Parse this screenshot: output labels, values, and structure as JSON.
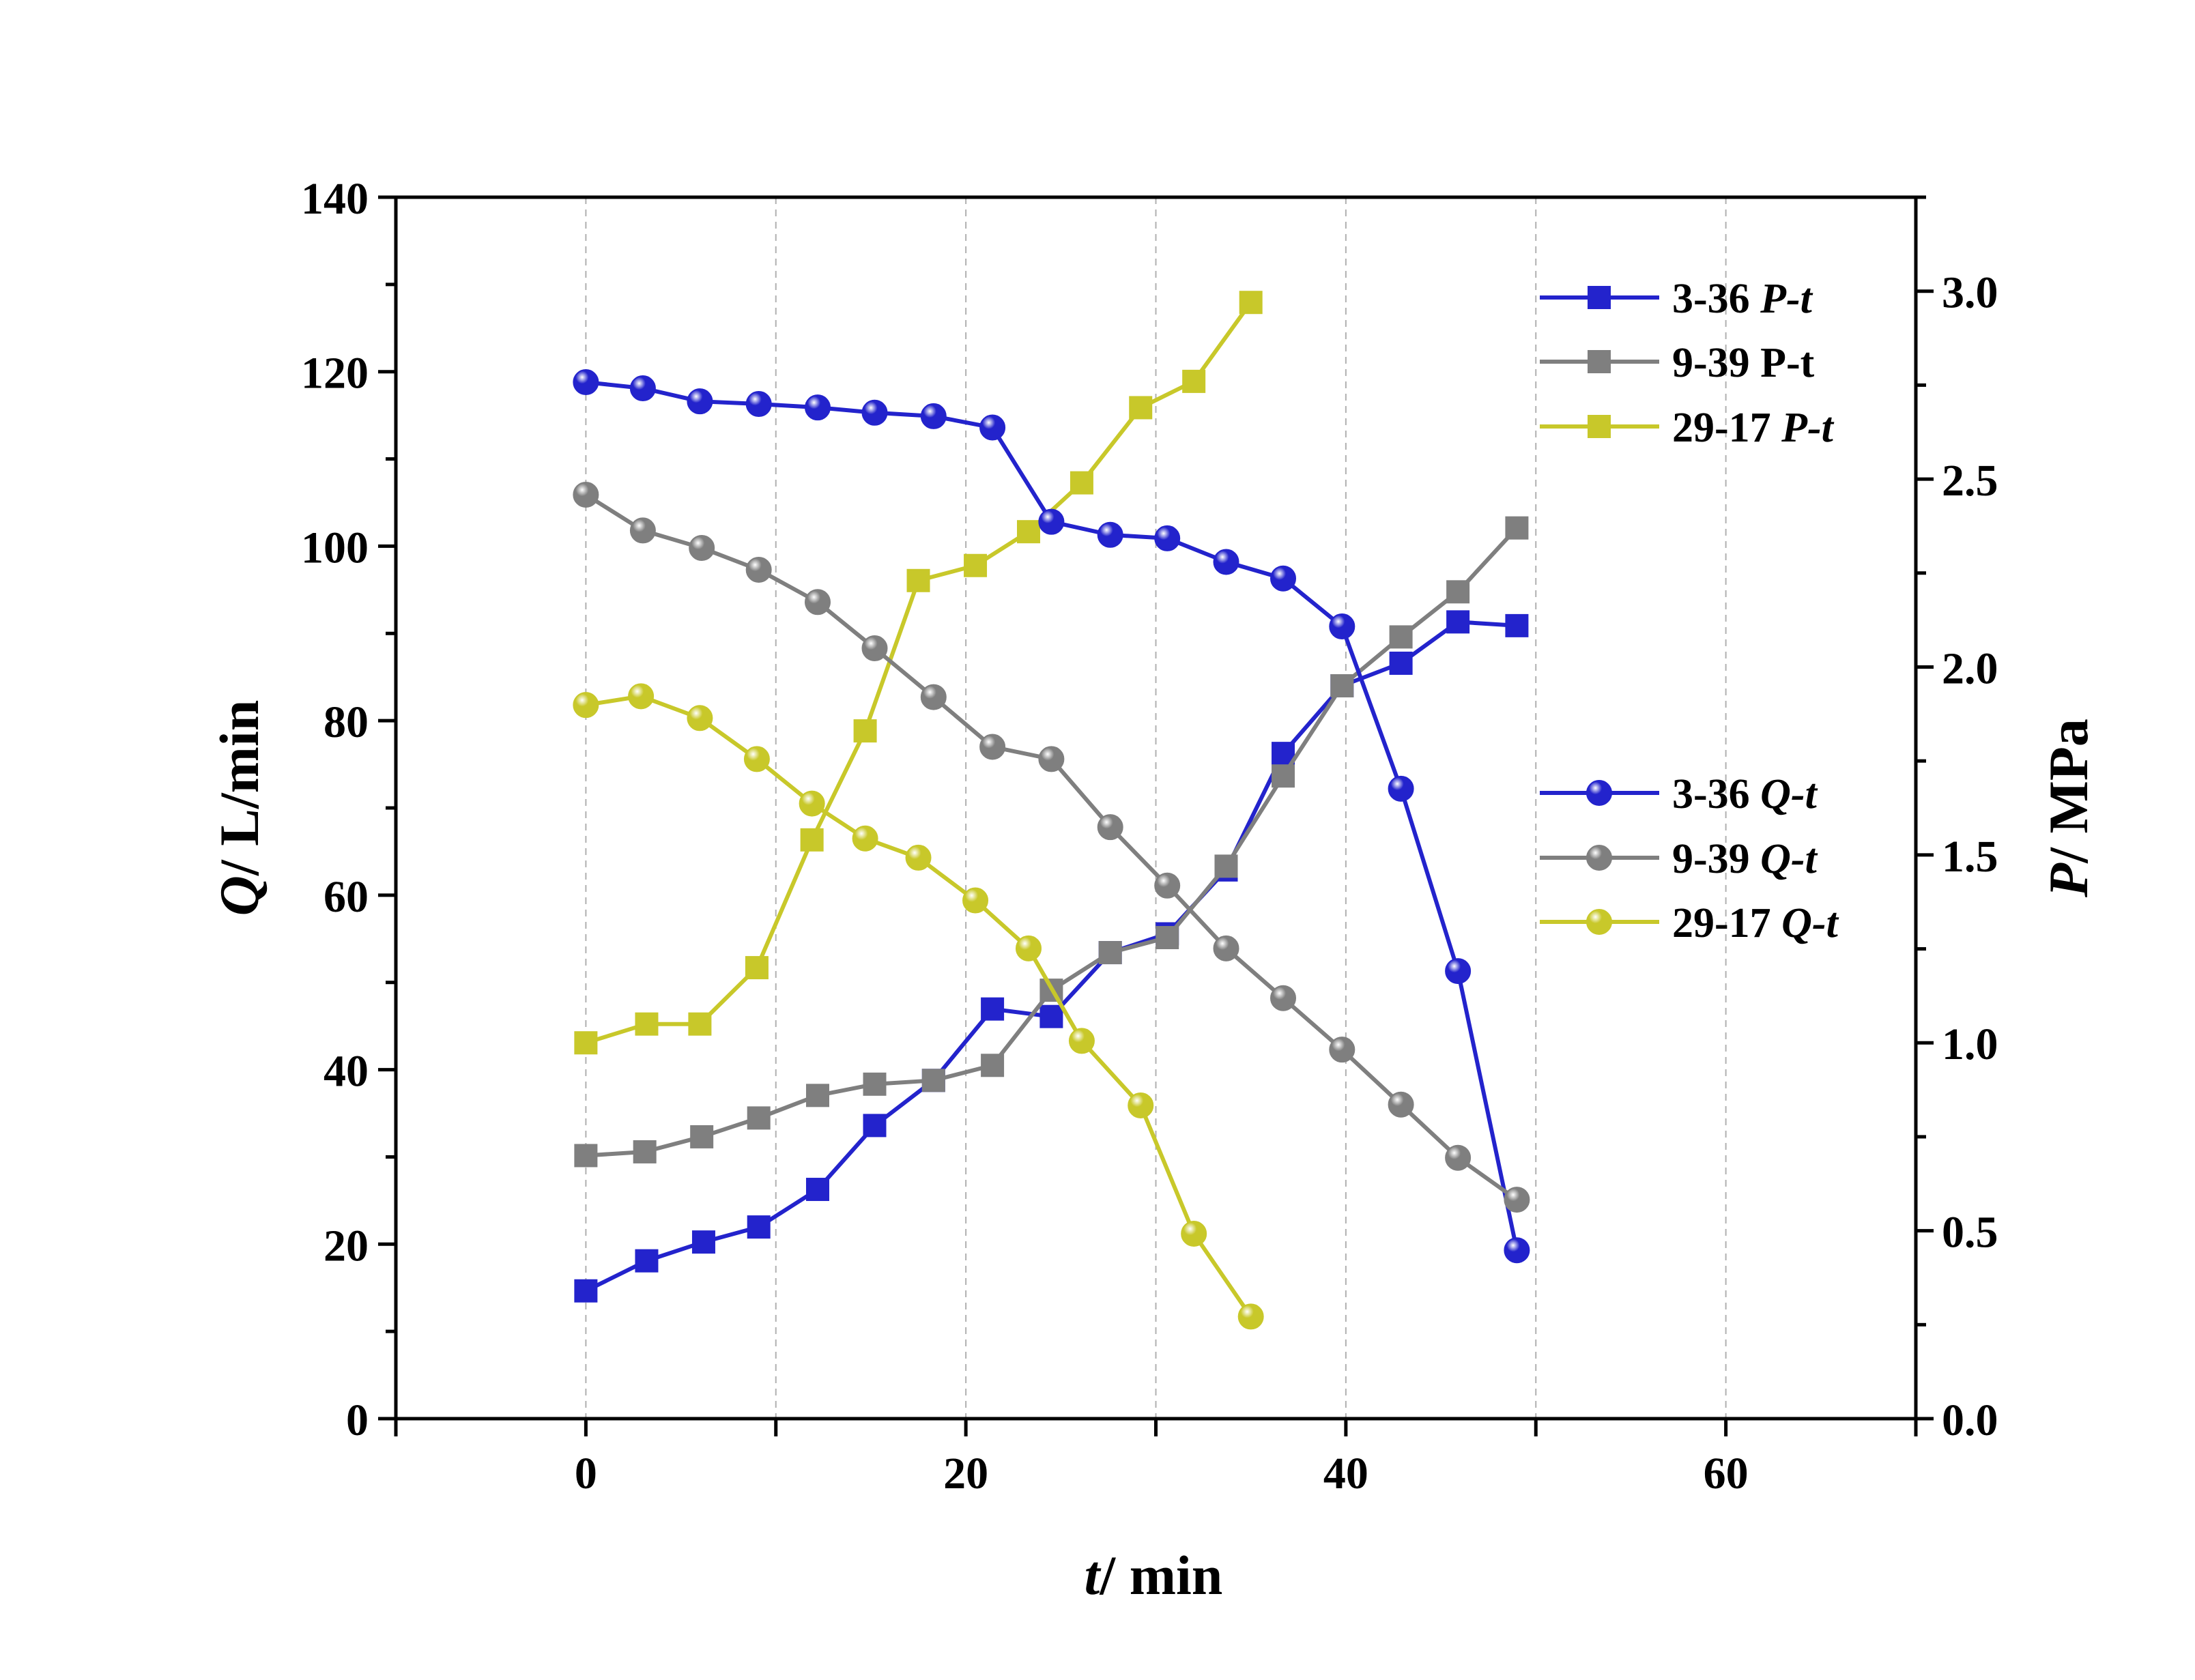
{
  "chart_data": {
    "type": "line",
    "grid": "vertical dashed",
    "x_axis": {
      "label_var": "t",
      "label_unit": "/ min",
      "range": [
        -10,
        70
      ],
      "ticks": [
        0,
        20,
        40,
        60
      ],
      "tick_labels": [
        "0",
        "20",
        "40",
        "60"
      ]
    },
    "y_left": {
      "label_var": "Q",
      "label_unit": "/ L/min",
      "range": [
        0,
        140
      ],
      "ticks": [
        0,
        20,
        40,
        60,
        80,
        100,
        120,
        140
      ],
      "tick_labels": [
        "0",
        "20",
        "40",
        "60",
        "80",
        "100",
        "120",
        "140"
      ]
    },
    "y_right": {
      "label_var": "P",
      "label_unit": "/ MPa",
      "range": [
        0,
        3.25
      ],
      "ticks": [
        0,
        0.5,
        1.0,
        1.5,
        2.0,
        2.5,
        3.0
      ],
      "tick_labels": [
        "0.0",
        "0.5",
        "1.0",
        "1.5",
        "2.0",
        "2.5",
        "3.0"
      ]
    },
    "legend_placement": "right",
    "series": [
      {
        "name": "3-36 P-t",
        "name_id": "3-36 ",
        "name_var": "P-t",
        "name_var_italic": true,
        "axis": "right",
        "marker": "square",
        "color": "#2323cc",
        "x": [
          0,
          3.2,
          6.2,
          9.1,
          12.2,
          15.2,
          18.3,
          21.4,
          24.5,
          27.6,
          30.6,
          33.7,
          36.7,
          39.8,
          42.9,
          45.9,
          49.0
        ],
        "y": [
          0.34,
          0.42,
          0.47,
          0.51,
          0.61,
          0.78,
          0.9,
          1.09,
          1.07,
          1.24,
          1.29,
          1.46,
          1.77,
          1.95,
          2.01,
          2.12,
          2.11
        ]
      },
      {
        "name": "9-39 P-t",
        "name_id": "9-39 ",
        "name_var": "P-t",
        "name_var_italic": false,
        "axis": "right",
        "marker": "square",
        "color": "#7f7f7f",
        "x": [
          0,
          3.1,
          6.1,
          9.1,
          12.2,
          15.2,
          18.3,
          21.4,
          24.5,
          27.6,
          30.6,
          33.7,
          36.7,
          39.8,
          42.9,
          45.9,
          49.0
        ],
        "y": [
          0.7,
          0.71,
          0.75,
          0.8,
          0.86,
          0.89,
          0.9,
          0.94,
          1.14,
          1.24,
          1.28,
          1.47,
          1.71,
          1.95,
          2.08,
          2.2,
          2.37
        ]
      },
      {
        "name": "29-17 P-t",
        "name_id": "29-17 ",
        "name_var": "P-t",
        "name_var_italic": true,
        "axis": "right",
        "marker": "square",
        "color": "#c8c82a",
        "x": [
          0,
          3.2,
          6.0,
          9.0,
          11.9,
          14.7,
          17.5,
          20.5,
          23.3,
          26.1,
          29.2,
          32.0,
          35.0
        ],
        "y": [
          1.0,
          1.05,
          1.05,
          1.2,
          1.54,
          1.83,
          2.23,
          2.27,
          2.36,
          2.49,
          2.69,
          2.76,
          2.97
        ]
      },
      {
        "name": "3-36 Q-t",
        "name_id": "3-36 ",
        "name_var": "Q-t",
        "name_var_italic": true,
        "axis": "left",
        "marker": "circle",
        "color": "#2323cc",
        "x": [
          0,
          3.0,
          6.0,
          9.1,
          12.2,
          15.2,
          18.3,
          21.4,
          24.5,
          27.6,
          30.6,
          33.7,
          36.7,
          39.8,
          42.9,
          45.9,
          49.0
        ],
        "y": [
          118.8,
          118.1,
          116.6,
          116.3,
          115.9,
          115.3,
          114.9,
          113.6,
          102.8,
          101.3,
          100.9,
          98.2,
          96.3,
          90.8,
          72.2,
          51.3,
          19.3
        ]
      },
      {
        "name": "9-39 Q-t",
        "name_id": "9-39 ",
        "name_var": "Q-t",
        "name_var_italic": true,
        "axis": "left",
        "marker": "circle",
        "color": "#7f7f7f",
        "x": [
          0,
          3.0,
          6.1,
          9.1,
          12.2,
          15.2,
          18.3,
          21.4,
          24.5,
          27.6,
          30.6,
          33.7,
          36.7,
          39.8,
          42.9,
          45.9,
          49.0
        ],
        "y": [
          105.9,
          101.8,
          99.8,
          97.3,
          93.6,
          88.3,
          82.7,
          77.0,
          75.6,
          67.8,
          61.1,
          53.9,
          48.2,
          42.3,
          36.0,
          29.9,
          25.1
        ]
      },
      {
        "name": "29-17 Q-t",
        "name_id": "29-17 ",
        "name_var": "Q-t",
        "name_var_italic": true,
        "axis": "left",
        "marker": "circle",
        "color": "#c8c82a",
        "x": [
          0,
          2.9,
          6.0,
          9.0,
          11.9,
          14.7,
          17.5,
          20.5,
          23.3,
          26.1,
          29.2,
          32.0,
          35.0
        ],
        "y": [
          81.8,
          82.8,
          80.3,
          75.6,
          70.5,
          66.5,
          64.3,
          59.4,
          53.9,
          43.3,
          35.9,
          21.2,
          11.7
        ]
      }
    ]
  }
}
